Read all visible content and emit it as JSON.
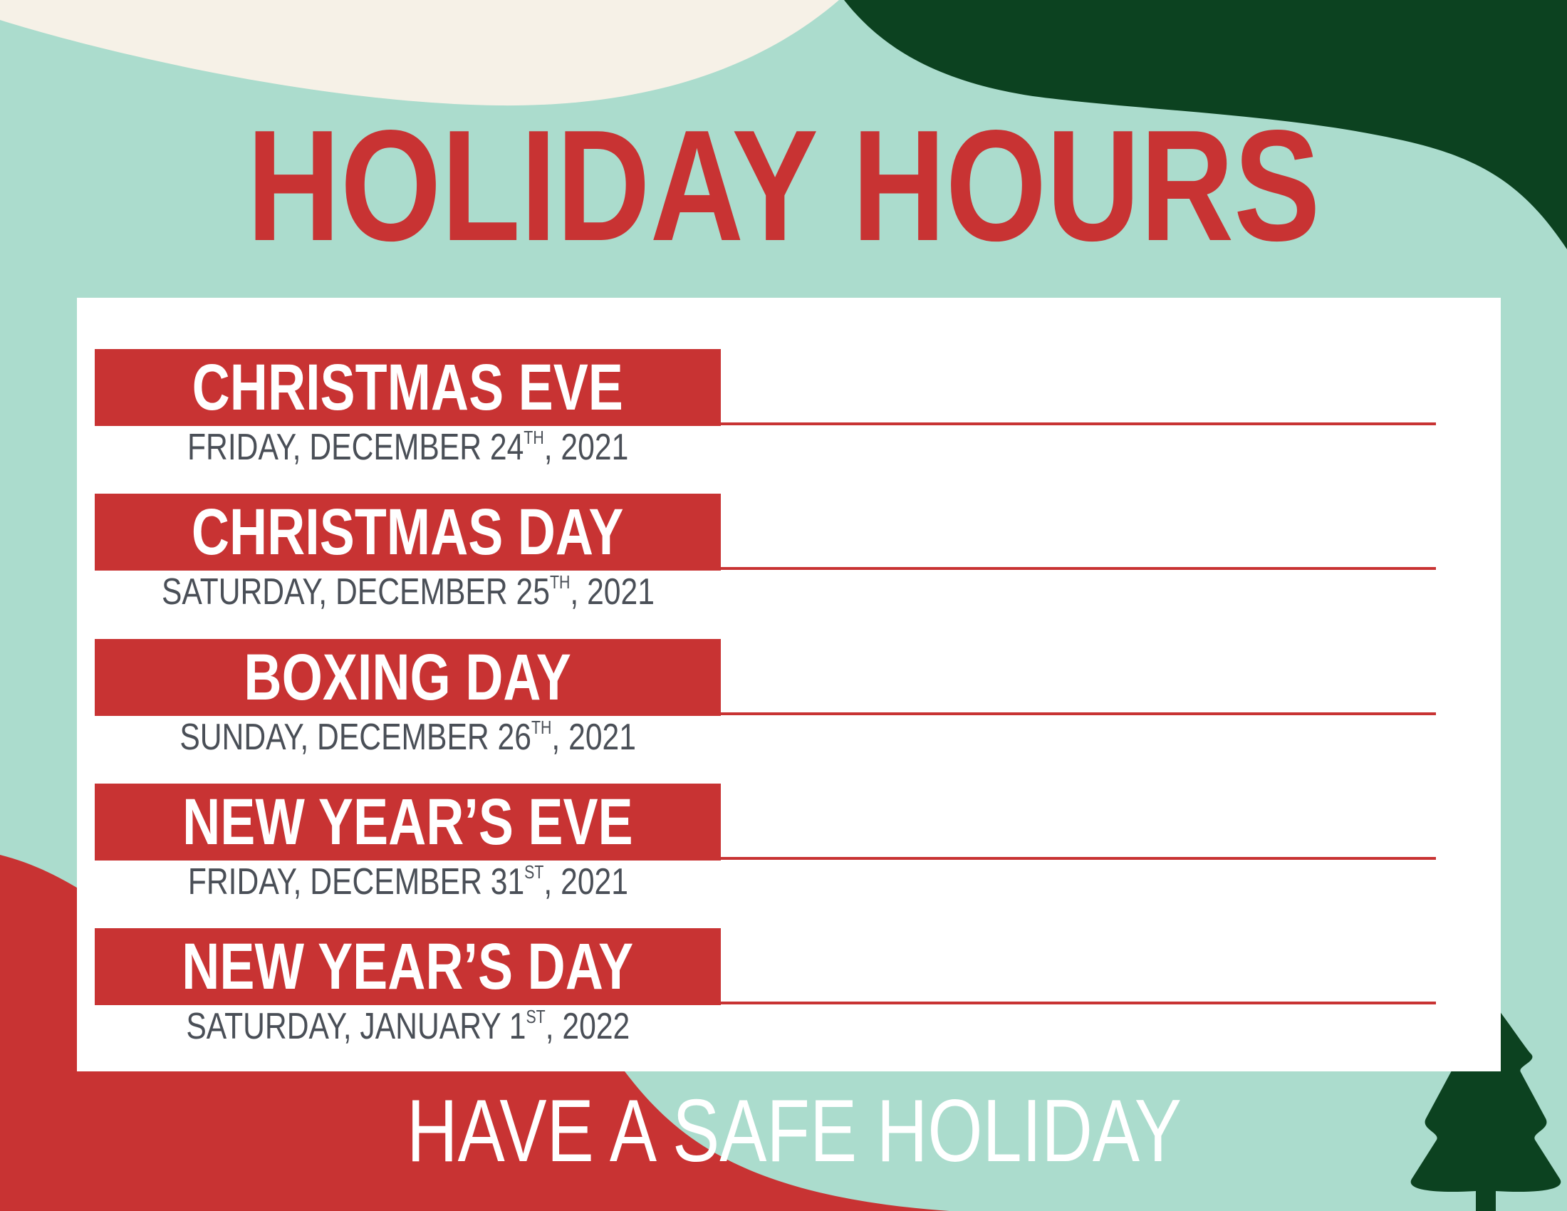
{
  "title": "HOLIDAY HOURS",
  "holidays": [
    {
      "name": "CHRISTMAS EVE",
      "date_main": "FRIDAY, DECEMBER 24",
      "ordinal": "TH",
      "date_end": ", 2021"
    },
    {
      "name": "CHRISTMAS DAY",
      "date_main": "SATURDAY, DECEMBER 25",
      "ordinal": "TH",
      "date_end": ", 2021"
    },
    {
      "name": "BOXING DAY",
      "date_main": "SUNDAY, DECEMBER 26",
      "ordinal": "TH",
      "date_end": ", 2021"
    },
    {
      "name": "NEW YEAR’S EVE",
      "date_main": "FRIDAY, DECEMBER 31",
      "ordinal": "ST",
      "date_end": ", 2021"
    },
    {
      "name": "NEW YEAR’S DAY",
      "date_main": "SATURDAY, JANUARY 1",
      "ordinal": "ST",
      "date_end": ", 2022"
    }
  ],
  "footer": "HAVE A SAFE HOLIDAY",
  "colors": {
    "background": "#abdccd",
    "red": "#c83333",
    "dark_green": "#0c4220",
    "cream": "#f6f1e7",
    "date_text": "#4a4f57"
  },
  "icons": {
    "tree": "christmas-tree-icon"
  }
}
